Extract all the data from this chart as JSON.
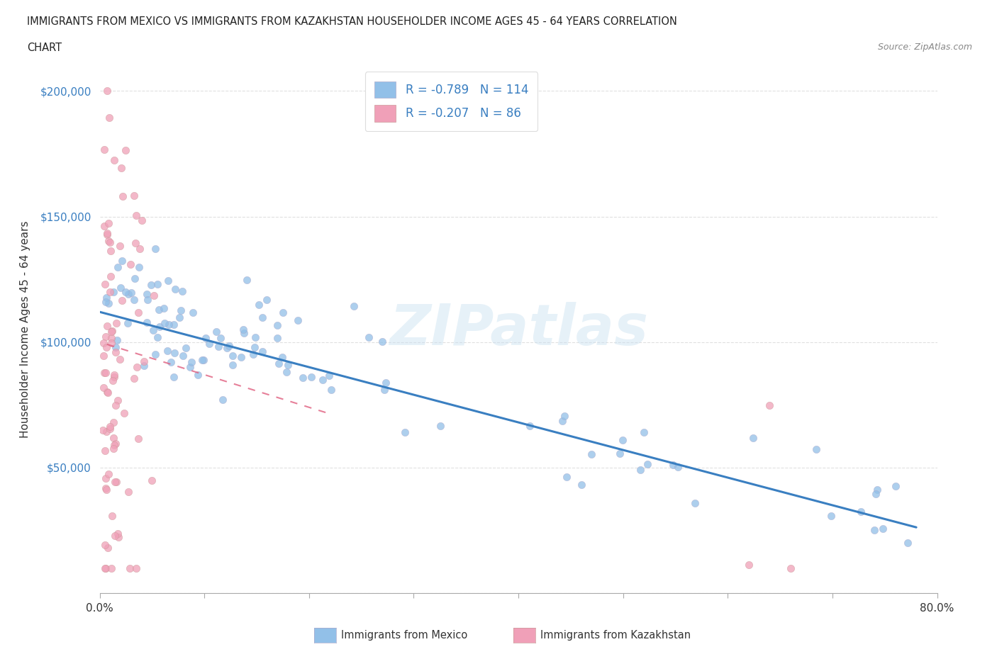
{
  "title_line1": "IMMIGRANTS FROM MEXICO VS IMMIGRANTS FROM KAZAKHSTAN HOUSEHOLDER INCOME AGES 45 - 64 YEARS CORRELATION",
  "title_line2": "CHART",
  "source": "Source: ZipAtlas.com",
  "ylabel": "Householder Income Ages 45 - 64 years",
  "xlim": [
    0.0,
    0.8
  ],
  "ylim": [
    0,
    210000
  ],
  "yticks": [
    0,
    50000,
    100000,
    150000,
    200000
  ],
  "xtick_positions": [
    0.0,
    0.1,
    0.2,
    0.3,
    0.4,
    0.5,
    0.6,
    0.7,
    0.8
  ],
  "mexico_scatter_color": "#92c0e8",
  "kazakhstan_scatter_color": "#f0a0b8",
  "mexico_R": -0.789,
  "mexico_N": 114,
  "kazakhstan_R": -0.207,
  "kazakhstan_N": 86,
  "mexico_line_color": "#3a7fc1",
  "kazakhstan_line_color": "#e06080",
  "watermark": "ZIPatlas",
  "legend_mexico": "Immigrants from Mexico",
  "legend_kazakhstan": "Immigrants from Kazakhstan",
  "mexico_intercept": 112000,
  "mexico_slope": -110000,
  "kazakhstan_intercept": 100000,
  "kazakhstan_slope": -130000,
  "background_color": "#ffffff"
}
